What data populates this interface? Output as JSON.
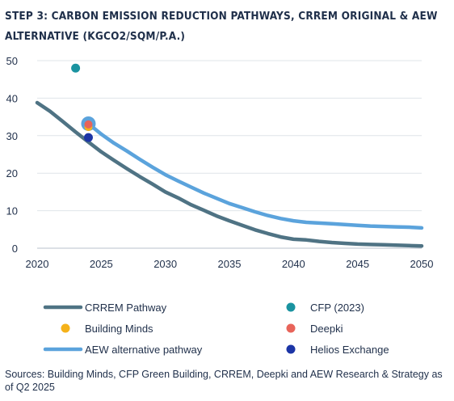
{
  "chart_data": {
    "type": "line",
    "title": "STEP 3: CARBON EMISSION REDUCTION PATHWAYS, CRREM ORIGINAL & AEW ALTERNATIVE (KGCO2/SQM/P.A.)",
    "xlabel": "",
    "ylabel": "",
    "xlim": [
      2020,
      2050
    ],
    "ylim": [
      0,
      50
    ],
    "x_ticks": [
      2020,
      2025,
      2030,
      2035,
      2040,
      2045,
      2050
    ],
    "y_ticks": [
      0,
      10,
      20,
      30,
      40,
      50
    ],
    "grid": "horizontal",
    "legend_position": "bottom",
    "series": [
      {
        "name": "CRREM Pathway",
        "kind": "line",
        "color": "#4f7384",
        "x": [
          2020,
          2021,
          2022,
          2023,
          2024,
          2025,
          2026,
          2027,
          2028,
          2029,
          2030,
          2031,
          2032,
          2033,
          2034,
          2035,
          2036,
          2037,
          2038,
          2039,
          2040,
          2041,
          2042,
          2043,
          2044,
          2045,
          2046,
          2047,
          2048,
          2049,
          2050
        ],
        "y": [
          38.8,
          36.5,
          33.8,
          31.0,
          28.3,
          25.7,
          23.4,
          21.2,
          19.1,
          17.1,
          15.0,
          13.4,
          11.6,
          10.1,
          8.6,
          7.3,
          6.1,
          4.9,
          3.9,
          3.0,
          2.4,
          2.2,
          1.8,
          1.5,
          1.3,
          1.1,
          1.0,
          0.9,
          0.8,
          0.7,
          0.6
        ]
      },
      {
        "name": "AEW alternative pathway",
        "kind": "line",
        "color": "#5ba3dc",
        "x": [
          2024,
          2025,
          2026,
          2027,
          2028,
          2029,
          2030,
          2031,
          2032,
          2033,
          2034,
          2035,
          2036,
          2037,
          2038,
          2039,
          2040,
          2041,
          2042,
          2043,
          2044,
          2045,
          2046,
          2047,
          2048,
          2049,
          2050
        ],
        "y": [
          33.2,
          30.4,
          28.0,
          25.9,
          23.7,
          21.6,
          19.6,
          17.9,
          16.3,
          14.7,
          13.3,
          11.9,
          10.8,
          9.7,
          8.7,
          7.9,
          7.3,
          6.9,
          6.7,
          6.5,
          6.3,
          6.1,
          5.9,
          5.8,
          5.7,
          5.6,
          5.4
        ]
      },
      {
        "name": "CFP (2023)",
        "kind": "point",
        "color": "#1a93a0",
        "x": [
          2023
        ],
        "y": [
          48.0
        ]
      },
      {
        "name": "Building Minds",
        "kind": "point",
        "color": "#f5b21a",
        "x": [
          2024
        ],
        "y": [
          32.3
        ]
      },
      {
        "name": "Deepki",
        "kind": "point",
        "color": "#e8645a",
        "x": [
          2024
        ],
        "y": [
          33.0
        ]
      },
      {
        "name": "Helios Exchange",
        "kind": "point",
        "color": "#1c35a6",
        "x": [
          2024
        ],
        "y": [
          29.5
        ]
      }
    ],
    "legend": [
      {
        "name": "CRREM Pathway",
        "kind": "line",
        "color": "#4f7384"
      },
      {
        "name": "CFP (2023)",
        "kind": "point",
        "color": "#1a93a0"
      },
      {
        "name": "Building Minds",
        "kind": "point",
        "color": "#f5b21a"
      },
      {
        "name": "Deepki",
        "kind": "point",
        "color": "#e8645a"
      },
      {
        "name": "AEW alternative pathway",
        "kind": "line",
        "color": "#5ba3dc"
      },
      {
        "name": "Helios Exchange",
        "kind": "point",
        "color": "#1c35a6"
      }
    ],
    "source": "Sources: Building Minds, CFP Green Building, CRREM, Deepki and AEW Research & Strategy as of Q2 2025"
  }
}
